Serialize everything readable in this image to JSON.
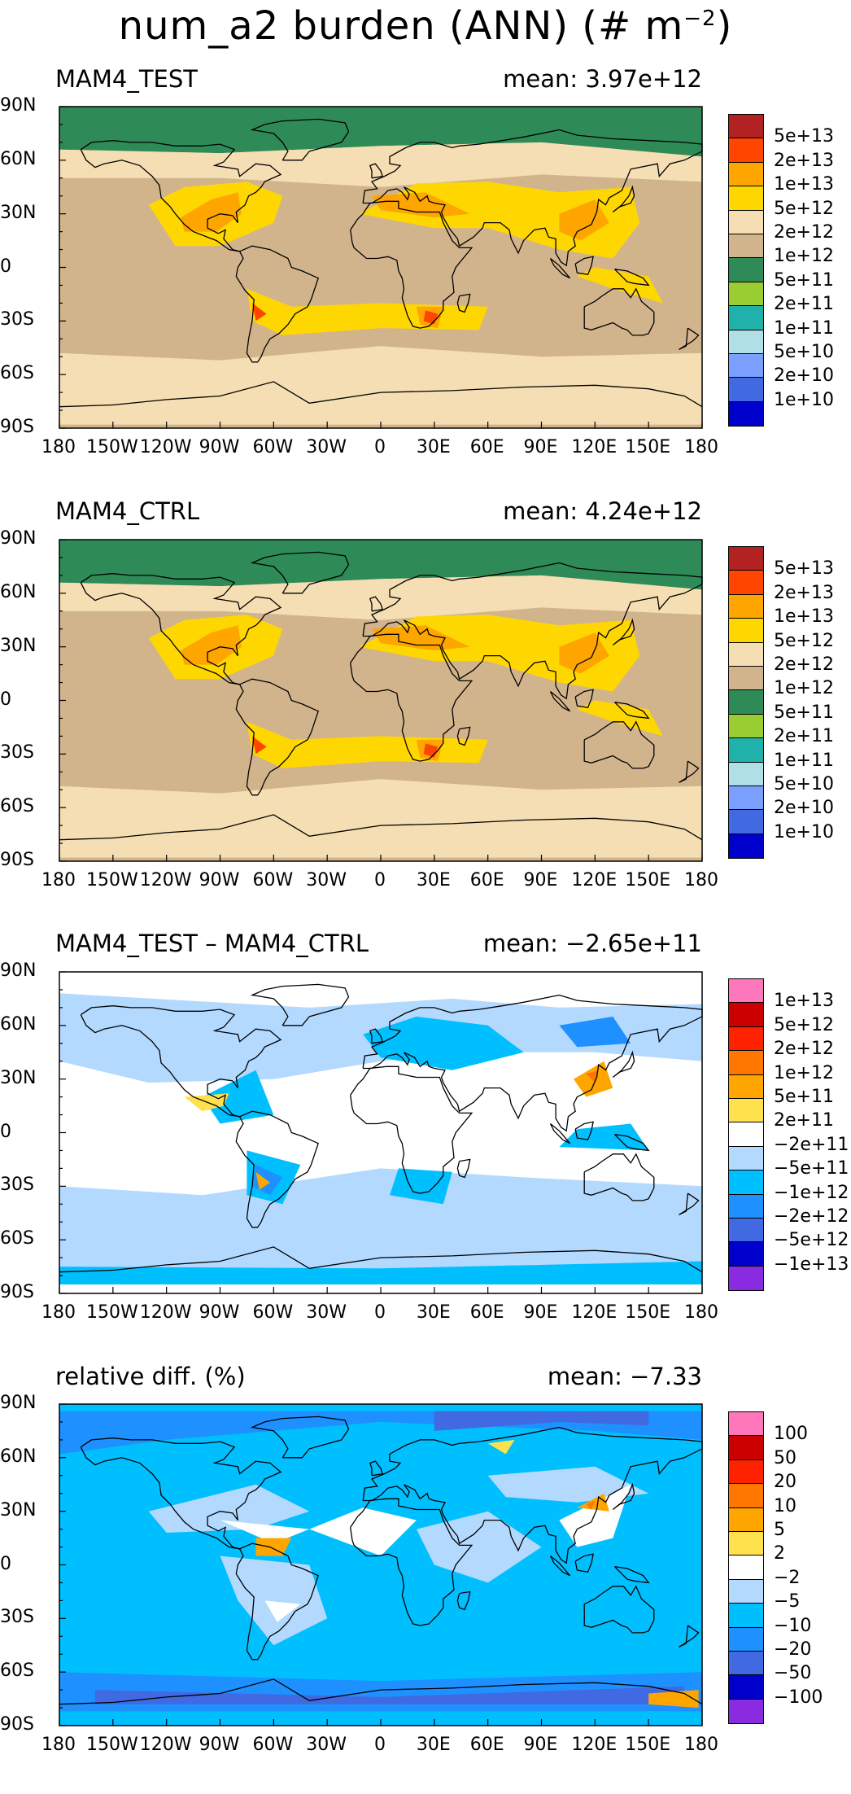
{
  "title": {
    "prefix": "num_a2 burden (ANN) (# m",
    "sup": "−2",
    "suffix": ")"
  },
  "x_ticks": [
    "180",
    "150W",
    "120W",
    "90W",
    "60W",
    "30W",
    "0",
    "30E",
    "60E",
    "90E",
    "120E",
    "150E",
    "180"
  ],
  "y_ticks": [
    "90N",
    "60N",
    "30N",
    "0",
    "30S",
    "60S",
    "90S"
  ],
  "panels": [
    {
      "name": "MAM4_TEST",
      "mean": "mean: 3.97e+12",
      "legend": {
        "labels": [
          "5e+13",
          "2e+13",
          "1e+13",
          "5e+12",
          "2e+12",
          "1e+12",
          "5e+11",
          "2e+11",
          "1e+11",
          "5e+10",
          "2e+10",
          "1e+10"
        ],
        "colors": [
          "#b22222",
          "#ff4500",
          "#ffa500",
          "#ffd700",
          "#f5deb3",
          "#d2b48c",
          "#2e8b57",
          "#9acd32",
          "#20b2aa",
          "#b0e0e6",
          "#7b9fff",
          "#4169e1",
          "#0000cd"
        ]
      }
    },
    {
      "name": "MAM4_CTRL",
      "mean": "mean: 4.24e+12",
      "legend": {
        "labels": [
          "5e+13",
          "2e+13",
          "1e+13",
          "5e+12",
          "2e+12",
          "1e+12",
          "5e+11",
          "2e+11",
          "1e+11",
          "5e+10",
          "2e+10",
          "1e+10"
        ],
        "colors": [
          "#b22222",
          "#ff4500",
          "#ffa500",
          "#ffd700",
          "#f5deb3",
          "#d2b48c",
          "#2e8b57",
          "#9acd32",
          "#20b2aa",
          "#b0e0e6",
          "#7b9fff",
          "#4169e1",
          "#0000cd"
        ]
      }
    },
    {
      "name": "MAM4_TEST – MAM4_CTRL",
      "mean": "mean: −2.65e+11",
      "legend": {
        "labels": [
          "1e+13",
          "5e+12",
          "2e+12",
          "1e+12",
          "5e+11",
          "2e+11",
          "−2e+11",
          "−5e+11",
          "−1e+12",
          "−2e+12",
          "−5e+12",
          "−1e+13"
        ],
        "colors": [
          "#ff77bb",
          "#cc0000",
          "#ff2200",
          "#ff7700",
          "#ffa500",
          "#ffe14d",
          "#ffffff",
          "#b3d9ff",
          "#00bfff",
          "#1e90ff",
          "#4169e1",
          "#0000cd",
          "#8a2be2"
        ]
      }
    },
    {
      "name": "relative diff. (%)",
      "mean": "mean: −7.33",
      "legend": {
        "labels": [
          "100",
          "50",
          "20",
          "10",
          "5",
          "2",
          "−2",
          "−5",
          "−10",
          "−20",
          "−50",
          "−100"
        ],
        "colors": [
          "#ff77bb",
          "#cc0000",
          "#ff2200",
          "#ff7700",
          "#ffa500",
          "#ffe14d",
          "#ffffff",
          "#b3d9ff",
          "#00bfff",
          "#1e90ff",
          "#4169e1",
          "#0000cd",
          "#8a2be2"
        ]
      }
    }
  ]
}
